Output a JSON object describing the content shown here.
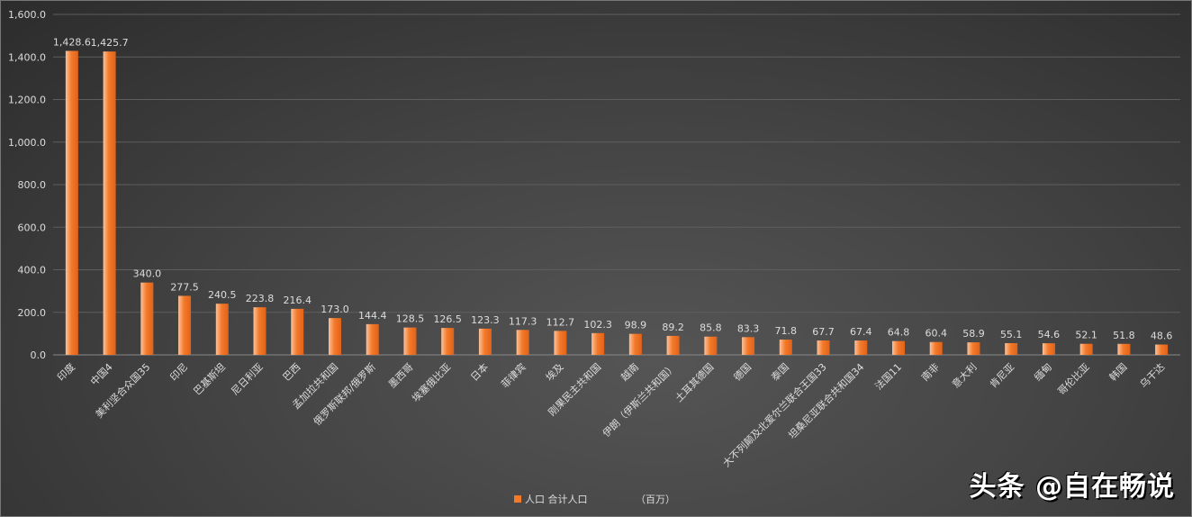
{
  "chart_data": {
    "type": "bar",
    "title": "",
    "xlabel": "",
    "ylabel": "",
    "ylim": [
      0,
      1600
    ],
    "yticks": [
      "0.0",
      "200.0",
      "400.0",
      "600.0",
      "800.0",
      "1,000.0",
      "1,200.0",
      "1,400.0",
      "1,600.0"
    ],
    "grid": true,
    "categories": [
      "印度",
      "中国4",
      "美利坚合众国35",
      "印尼",
      "巴基斯坦",
      "尼日利亚",
      "巴西",
      "孟加拉共和国",
      "俄罗斯联邦/俄罗斯",
      "墨西哥",
      "埃塞俄比亚",
      "日本",
      "菲律宾",
      "埃及",
      "刚果民主共和国",
      "越南",
      "伊朗（伊斯兰共和国）",
      "土耳其德国",
      "德国",
      "泰国",
      "大不列颠及北爱尔兰联合王国33",
      "坦桑尼亚联合共和国34",
      "法国11",
      "南非",
      "意大利",
      "肯尼亚",
      "缅甸",
      "哥伦比亚",
      "韩国",
      "乌干达"
    ],
    "series": [
      {
        "name": "人口 合计人口",
        "values": [
          1428.6,
          1425.7,
          340.0,
          277.5,
          240.5,
          223.8,
          216.4,
          173.0,
          144.4,
          128.5,
          126.5,
          123.3,
          117.3,
          112.7,
          102.3,
          98.9,
          89.2,
          85.8,
          83.3,
          71.8,
          67.7,
          67.4,
          64.8,
          60.4,
          58.9,
          55.1,
          54.6,
          52.1,
          51.8,
          48.6
        ],
        "labels": [
          "1,428.6",
          "1,425.7",
          "340.0",
          "277.5",
          "240.5",
          "223.8",
          "216.4",
          "173.0",
          "144.4",
          "128.5",
          "126.5",
          "123.3",
          "117.3",
          "112.7",
          "102.3",
          "98.9",
          "89.2",
          "85.8",
          "83.3",
          "71.8",
          "67.7",
          "67.4",
          "64.8",
          "60.4",
          "58.9",
          "55.1",
          "54.6",
          "52.1",
          "51.8",
          "48.6"
        ]
      }
    ],
    "legend": {
      "label": "人口 合计人口",
      "unit": "（百万）",
      "position": "bottom"
    },
    "colors": {
      "bar": "#f47a2a",
      "bar_light": "#f9b48a"
    }
  },
  "watermark": "头条 @自在畅说"
}
